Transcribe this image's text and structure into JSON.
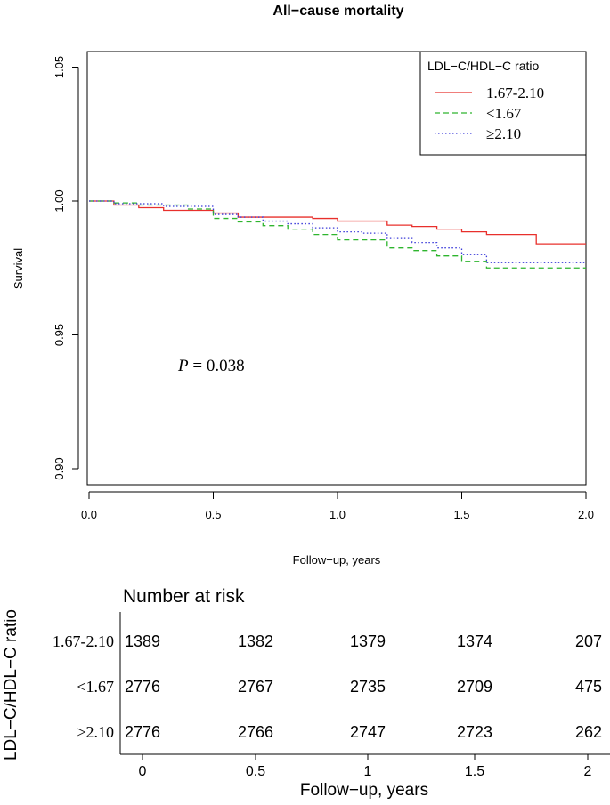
{
  "chart_data": {
    "type": "line",
    "subtype": "kaplan-meier",
    "title": "All−cause mortality",
    "xlabel": "Follow−up, years",
    "ylabel": "Survival",
    "xlim": [
      0,
      2.0
    ],
    "ylim": [
      0.895,
      1.0545
    ],
    "x_ticks": [
      0,
      0.5,
      1.0,
      1.5,
      2.0
    ],
    "x_tick_labels": [
      "0.0",
      "0.5",
      "1.0",
      "1.5",
      "2.0"
    ],
    "y_ticks": [
      0.9,
      0.95,
      1.0,
      1.05
    ],
    "y_tick_labels": [
      "0.90",
      "0.95",
      "1.00",
      "1.05"
    ],
    "legend_title": "LDL−C/HDL−C ratio",
    "legend_position": "top-right",
    "annotation": {
      "italic": "P",
      "text": " = 0.038"
    },
    "series": [
      {
        "name": "1.67-2.10",
        "color": "#e8302c",
        "dash": "solid",
        "x": [
          0,
          0.1,
          0.2,
          0.3,
          0.5,
          0.6,
          0.9,
          1.0,
          1.2,
          1.3,
          1.4,
          1.5,
          1.6,
          1.8,
          2.0
        ],
        "y": [
          1.0,
          0.9985,
          0.9975,
          0.9965,
          0.9955,
          0.994,
          0.9935,
          0.9925,
          0.991,
          0.9905,
          0.9895,
          0.9885,
          0.9875,
          0.984,
          0.984
        ]
      },
      {
        "name": "<1.67",
        "color": "#2eb52e",
        "dash": "dashed",
        "x": [
          0,
          0.1,
          0.2,
          0.4,
          0.5,
          0.6,
          0.7,
          0.8,
          0.9,
          1.0,
          1.2,
          1.3,
          1.4,
          1.5,
          1.6,
          2.0
        ],
        "y": [
          1.0,
          0.9993,
          0.9985,
          0.997,
          0.9935,
          0.9922,
          0.9908,
          0.9895,
          0.9875,
          0.9855,
          0.9825,
          0.9815,
          0.9795,
          0.9775,
          0.975,
          0.975
        ]
      },
      {
        "name": "≥2.10",
        "color": "#3b3bd9",
        "dash": "dotted",
        "x": [
          0,
          0.1,
          0.3,
          0.5,
          0.6,
          0.7,
          0.8,
          0.9,
          1.0,
          1.1,
          1.2,
          1.3,
          1.4,
          1.5,
          1.6,
          2.0
        ],
        "y": [
          1.0,
          0.999,
          0.998,
          0.995,
          0.994,
          0.9925,
          0.9915,
          0.99,
          0.9885,
          0.988,
          0.986,
          0.9845,
          0.9825,
          0.98,
          0.977,
          0.977
        ]
      }
    ],
    "risk_table": {
      "title": "Number at risk",
      "row_axis_label": "LDL−C/HDL−C ratio",
      "xlabel": "Follow−up, years",
      "x_ticks": [
        0,
        0.5,
        1,
        1.5,
        2
      ],
      "x_tick_labels": [
        "0",
        "0.5",
        "1",
        "1.5",
        "2"
      ],
      "rows": [
        {
          "name": "1.67-2.10",
          "counts": [
            "1389",
            "1382",
            "1379",
            "1374",
            "207"
          ]
        },
        {
          "name": "<1.67",
          "counts": [
            "2776",
            "2767",
            "2735",
            "2709",
            "475"
          ]
        },
        {
          "name": "≥2.10",
          "counts": [
            "2776",
            "2766",
            "2747",
            "2723",
            "262"
          ]
        }
      ]
    }
  }
}
